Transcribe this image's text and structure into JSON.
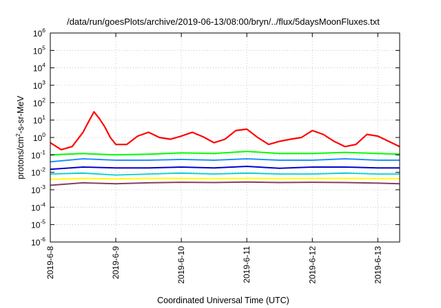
{
  "chart_data": {
    "type": "line",
    "title": "/data/run/goesPlots/archive/2019-06-13/08:00/bryn/../flux/5daysMoonFluxes.txt",
    "xlabel": "Coordinated Universal Time (UTC)",
    "ylabel": {
      "prefix": "protons/cm",
      "sup": "2",
      "suffix": "-s-sr-MeV"
    },
    "x_ticks": [
      "2019-6-8",
      "2019-6-9",
      "2019-6-10",
      "2019-6-11",
      "2019-6-12",
      "2019-6-13"
    ],
    "xlim": [
      "2019-06-08 00:00",
      "2019-06-13 08:00"
    ],
    "y_scale": "log",
    "ylim": [
      1e-06,
      1000000.0
    ],
    "y_ticks": [
      {
        "base": "10",
        "exp": "-6"
      },
      {
        "base": "10",
        "exp": "-5"
      },
      {
        "base": "10",
        "exp": "-4"
      },
      {
        "base": "10",
        "exp": "-3"
      },
      {
        "base": "10",
        "exp": "-2"
      },
      {
        "base": "10",
        "exp": "-1"
      },
      {
        "base": "10",
        "exp": "0"
      },
      {
        "base": "10",
        "exp": "1"
      },
      {
        "base": "10",
        "exp": "2"
      },
      {
        "base": "10",
        "exp": "3"
      },
      {
        "base": "10",
        "exp": "4"
      },
      {
        "base": "10",
        "exp": "5"
      },
      {
        "base": "10",
        "exp": "6"
      }
    ],
    "grid": true,
    "series": [
      {
        "color": "#ff0000",
        "width": 2.2,
        "x": [
          "2019-06-08 00:00",
          "2019-06-08 04:00",
          "2019-06-08 08:00",
          "2019-06-08 12:00",
          "2019-06-08 14:00",
          "2019-06-08 16:00",
          "2019-06-08 18:00",
          "2019-06-08 20:00",
          "2019-06-08 22:00",
          "2019-06-09 00:00",
          "2019-06-09 04:00",
          "2019-06-09 08:00",
          "2019-06-09 12:00",
          "2019-06-09 16:00",
          "2019-06-09 20:00",
          "2019-06-10 00:00",
          "2019-06-10 04:00",
          "2019-06-10 08:00",
          "2019-06-10 12:00",
          "2019-06-10 16:00",
          "2019-06-10 20:00",
          "2019-06-11 00:00",
          "2019-06-11 04:00",
          "2019-06-11 08:00",
          "2019-06-11 12:00",
          "2019-06-11 16:00",
          "2019-06-11 20:00",
          "2019-06-12 00:00",
          "2019-06-12 04:00",
          "2019-06-12 08:00",
          "2019-06-12 12:00",
          "2019-06-12 16:00",
          "2019-06-12 20:00",
          "2019-06-13 00:00",
          "2019-06-13 04:00",
          "2019-06-13 08:00"
        ],
        "y": [
          0.5,
          0.2,
          0.3,
          2.0,
          8.0,
          30,
          12,
          4.0,
          1.0,
          0.4,
          0.4,
          1.2,
          2.0,
          1.0,
          0.8,
          1.2,
          2.0,
          1.1,
          0.5,
          0.8,
          2.5,
          3.0,
          1.0,
          0.4,
          0.6,
          0.8,
          1.0,
          2.5,
          1.5,
          0.6,
          0.3,
          0.4,
          1.5,
          1.2,
          0.6,
          0.3
        ]
      },
      {
        "color": "#00ff00",
        "width": 2.0,
        "x": [
          "2019-06-08 00:00",
          "2019-06-08 12:00",
          "2019-06-09 00:00",
          "2019-06-09 12:00",
          "2019-06-10 00:00",
          "2019-06-10 12:00",
          "2019-06-11 00:00",
          "2019-06-11 12:00",
          "2019-06-12 00:00",
          "2019-06-12 12:00",
          "2019-06-13 00:00",
          "2019-06-13 08:00"
        ],
        "y": [
          0.1,
          0.12,
          0.1,
          0.11,
          0.13,
          0.12,
          0.16,
          0.12,
          0.12,
          0.14,
          0.12,
          0.11
        ]
      },
      {
        "color": "#1e90ff",
        "width": 2.0,
        "x": [
          "2019-06-08 00:00",
          "2019-06-08 12:00",
          "2019-06-09 00:00",
          "2019-06-09 12:00",
          "2019-06-10 00:00",
          "2019-06-10 12:00",
          "2019-06-11 00:00",
          "2019-06-11 12:00",
          "2019-06-12 00:00",
          "2019-06-12 12:00",
          "2019-06-13 00:00",
          "2019-06-13 08:00"
        ],
        "y": [
          0.04,
          0.06,
          0.05,
          0.05,
          0.055,
          0.05,
          0.06,
          0.05,
          0.05,
          0.06,
          0.05,
          0.05
        ]
      },
      {
        "color": "#0000cd",
        "width": 2.0,
        "x": [
          "2019-06-08 00:00",
          "2019-06-08 12:00",
          "2019-06-09 00:00",
          "2019-06-09 12:00",
          "2019-06-10 00:00",
          "2019-06-10 12:00",
          "2019-06-11 00:00",
          "2019-06-11 12:00",
          "2019-06-12 00:00",
          "2019-06-12 12:00",
          "2019-06-13 00:00",
          "2019-06-13 08:00"
        ],
        "y": [
          0.015,
          0.02,
          0.018,
          0.018,
          0.02,
          0.018,
          0.022,
          0.017,
          0.02,
          0.02,
          0.018,
          0.018
        ]
      },
      {
        "color": "#00ced1",
        "width": 1.8,
        "x": [
          "2019-06-08 00:00",
          "2019-06-08 12:00",
          "2019-06-09 00:00",
          "2019-06-09 12:00",
          "2019-06-10 00:00",
          "2019-06-10 12:00",
          "2019-06-11 00:00",
          "2019-06-11 12:00",
          "2019-06-12 00:00",
          "2019-06-12 12:00",
          "2019-06-13 00:00",
          "2019-06-13 08:00"
        ],
        "y": [
          0.008,
          0.009,
          0.007,
          0.008,
          0.009,
          0.008,
          0.009,
          0.008,
          0.008,
          0.009,
          0.008,
          0.008
        ]
      },
      {
        "color": "#ffff00",
        "width": 2.0,
        "x": [
          "2019-06-08 00:00",
          "2019-06-08 12:00",
          "2019-06-09 00:00",
          "2019-06-09 12:00",
          "2019-06-10 00:00",
          "2019-06-10 12:00",
          "2019-06-11 00:00",
          "2019-06-11 12:00",
          "2019-06-12 00:00",
          "2019-06-12 12:00",
          "2019-06-13 00:00",
          "2019-06-13 08:00"
        ],
        "y": [
          0.004,
          0.0045,
          0.0042,
          0.0045,
          0.0045,
          0.0044,
          0.0045,
          0.0044,
          0.0045,
          0.0045,
          0.0044,
          0.0044
        ]
      },
      {
        "color": "#8b3a62",
        "width": 2.0,
        "x": [
          "2019-06-08 00:00",
          "2019-06-08 12:00",
          "2019-06-09 00:00",
          "2019-06-09 12:00",
          "2019-06-10 00:00",
          "2019-06-10 12:00",
          "2019-06-11 00:00",
          "2019-06-11 12:00",
          "2019-06-12 00:00",
          "2019-06-12 12:00",
          "2019-06-13 00:00",
          "2019-06-13 08:00"
        ],
        "y": [
          0.0018,
          0.0025,
          0.0022,
          0.0025,
          0.0027,
          0.0026,
          0.0028,
          0.0026,
          0.0027,
          0.0026,
          0.0024,
          0.0022
        ]
      }
    ]
  }
}
